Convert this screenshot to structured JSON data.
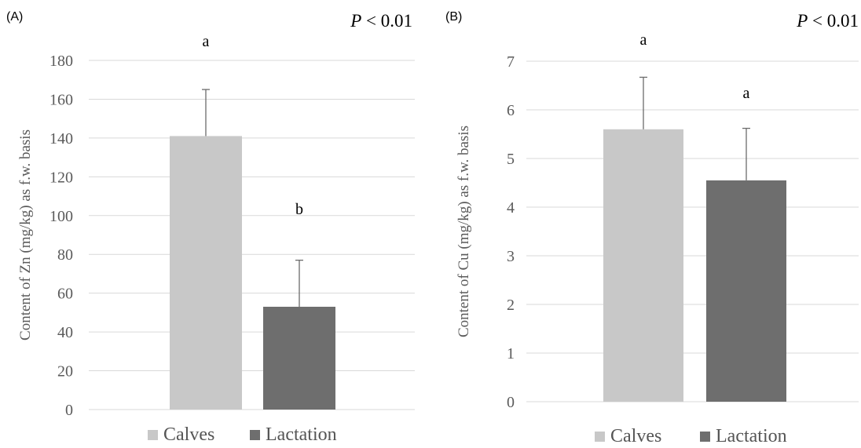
{
  "chart_data": [
    {
      "type": "bar",
      "panel_label": "(A)",
      "p_prefix": "P",
      "p_suffix": " < 0.01",
      "ylabel": "Content of Zn (mg/kg) as f.w. basis",
      "ylim": [
        0,
        180
      ],
      "yticks": [
        0,
        20,
        40,
        60,
        80,
        100,
        120,
        140,
        160,
        180
      ],
      "categories": [
        "Calves",
        "Lactation"
      ],
      "values": [
        141,
        53
      ],
      "errors": [
        24,
        24
      ],
      "significance": [
        "a",
        "b"
      ],
      "colors": [
        "#c8c8c8",
        "#6e6e6e"
      ],
      "grid": true,
      "legend": "bottom"
    },
    {
      "type": "bar",
      "panel_label": "(B)",
      "p_prefix": "P",
      "p_suffix": " < 0.01",
      "ylabel": "Content of Cu (mg/kg) as f.w. basis",
      "ylim": [
        0,
        7
      ],
      "yticks": [
        0,
        1,
        2,
        3,
        4,
        5,
        6,
        7
      ],
      "categories": [
        "Calves",
        "Lactation"
      ],
      "values": [
        5.6,
        4.55
      ],
      "errors": [
        1.07,
        1.07
      ],
      "significance": [
        "a",
        "a"
      ],
      "colors": [
        "#c8c8c8",
        "#6e6e6e"
      ],
      "grid": true,
      "legend": "bottom"
    }
  ]
}
